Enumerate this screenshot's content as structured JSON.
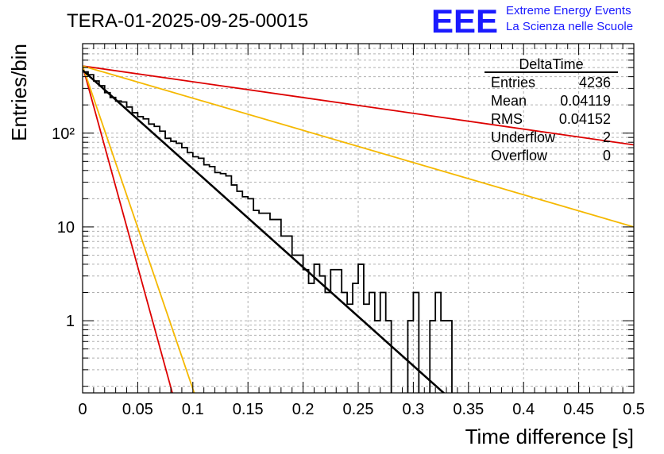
{
  "header": {
    "run_title": "TERA-01-2025-09-25-00015",
    "logo_text": "EEE",
    "logo_line1": "Extreme Energy Events",
    "logo_line2": "La Scienza nelle Scuole",
    "brand_color": "#1a1aff"
  },
  "stats": {
    "title": "DeltaTime",
    "rows": [
      {
        "label": "Entries",
        "value": "4236"
      },
      {
        "label": "Mean",
        "value": "0.04119"
      },
      {
        "label": "RMS",
        "value": "0.04152"
      },
      {
        "label": "Underflow",
        "value": "2"
      },
      {
        "label": "Overflow",
        "value": "0"
      }
    ]
  },
  "chart_data": {
    "type": "line",
    "title": "TERA-01-2025-09-25-00015",
    "xlabel": "Time difference [s]",
    "ylabel": "Entries/bin",
    "xlim": [
      0,
      0.5
    ],
    "ylim": [
      0.17,
      900
    ],
    "yscale": "log",
    "grid": true,
    "x_ticks": [
      "0",
      "0.05",
      "0.1",
      "0.15",
      "0.2",
      "0.25",
      "0.3",
      "0.35",
      "0.4",
      "0.45",
      "0.5"
    ],
    "y_ticks": [
      {
        "value": 1,
        "label": "1"
      },
      {
        "value": 10,
        "label": "10"
      },
      {
        "value": 100,
        "label": "10²"
      }
    ],
    "histogram": {
      "name": "DeltaTime",
      "bin_width": 0.005,
      "color": "#000000",
      "values": [
        450,
        420,
        360,
        320,
        270,
        240,
        220,
        215,
        190,
        165,
        150,
        142,
        125,
        118,
        105,
        88,
        82,
        78,
        70,
        62,
        56,
        54,
        46,
        44,
        38,
        37,
        35,
        28,
        24,
        21,
        20,
        15,
        14,
        14,
        12,
        12,
        8,
        8,
        5,
        5,
        3.5,
        2.5,
        4,
        3,
        2,
        3.5,
        3.5,
        2,
        1.5,
        2.5,
        4,
        1.5,
        2,
        1,
        2,
        1,
        0,
        0,
        0,
        1,
        2,
        0,
        0,
        1,
        2,
        1,
        1,
        0,
        0,
        0,
        0,
        0,
        0,
        0,
        0,
        0,
        0,
        0,
        0,
        0,
        0,
        0,
        0,
        0,
        0,
        0,
        0,
        0,
        0,
        0,
        0,
        0,
        0,
        0,
        0,
        0,
        0,
        0,
        0,
        0
      ]
    },
    "series": [
      {
        "name": "exponential fit",
        "color": "#000000",
        "points": [
          [
            0.0,
            470
          ],
          [
            0.33,
            0.16
          ]
        ]
      },
      {
        "name": "red slow",
        "color": "#dd0000",
        "points": [
          [
            0.0,
            520
          ],
          [
            0.5,
            75
          ]
        ]
      },
      {
        "name": "orange slow",
        "color": "#f5b800",
        "points": [
          [
            0.0,
            520
          ],
          [
            0.5,
            10
          ]
        ]
      },
      {
        "name": "red fast",
        "color": "#dd0000",
        "points": [
          [
            0.0,
            520
          ],
          [
            0.082,
            0.16
          ]
        ]
      },
      {
        "name": "orange fast",
        "color": "#f5b800",
        "points": [
          [
            0.0,
            520
          ],
          [
            0.102,
            0.16
          ]
        ]
      }
    ]
  }
}
